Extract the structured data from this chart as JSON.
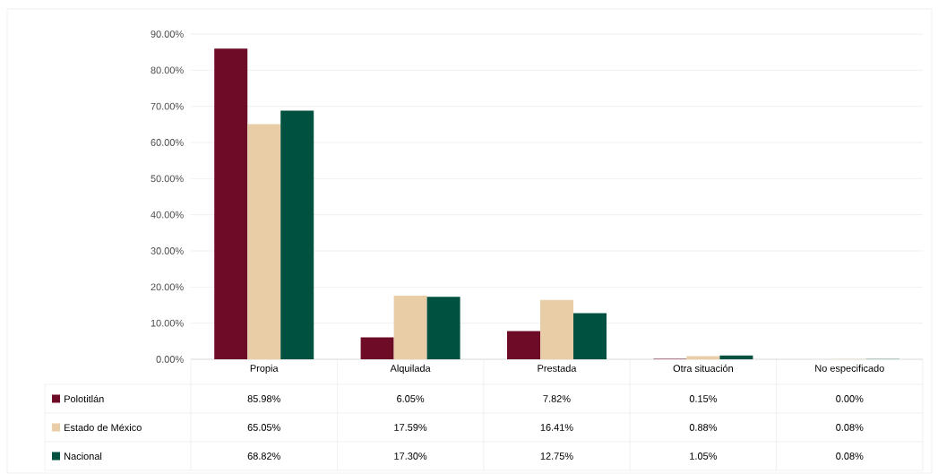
{
  "chart_data": {
    "type": "bar",
    "categories": [
      "Propia",
      "Alquilada",
      "Prestada",
      "Otra situación",
      "No especificado"
    ],
    "series": [
      {
        "name": "Polotitlán",
        "color": "#6e0c27",
        "values": [
          85.98,
          6.05,
          7.82,
          0.15,
          0.0
        ],
        "value_labels": [
          "85.98%",
          "6.05%",
          "7.82%",
          "0.15%",
          "0.00%"
        ]
      },
      {
        "name": "Estado de México",
        "color": "#e8cda6",
        "values": [
          65.05,
          17.59,
          16.41,
          0.88,
          0.08
        ],
        "value_labels": [
          "65.05%",
          "17.59%",
          "16.41%",
          "0.88%",
          "0.08%"
        ]
      },
      {
        "name": "Nacional",
        "color": "#00513f",
        "values": [
          68.82,
          17.3,
          12.75,
          1.05,
          0.08
        ],
        "value_labels": [
          "68.82%",
          "17.30%",
          "12.75%",
          "1.05%",
          "0.08%"
        ]
      }
    ],
    "ylim": [
      0,
      90
    ],
    "yticks": [
      {
        "value": 0,
        "label": "0.00%"
      },
      {
        "value": 10,
        "label": "10.00%"
      },
      {
        "value": 20,
        "label": "20.00%"
      },
      {
        "value": 30,
        "label": "30.00%"
      },
      {
        "value": 40,
        "label": "40.00%"
      },
      {
        "value": 50,
        "label": "50.00%"
      },
      {
        "value": 60,
        "label": "60.00%"
      },
      {
        "value": 70,
        "label": "70.00%"
      },
      {
        "value": 80,
        "label": "80.00%"
      },
      {
        "value": 90,
        "label": "90.00%"
      }
    ],
    "grid": "y",
    "legend": "bottom left"
  }
}
